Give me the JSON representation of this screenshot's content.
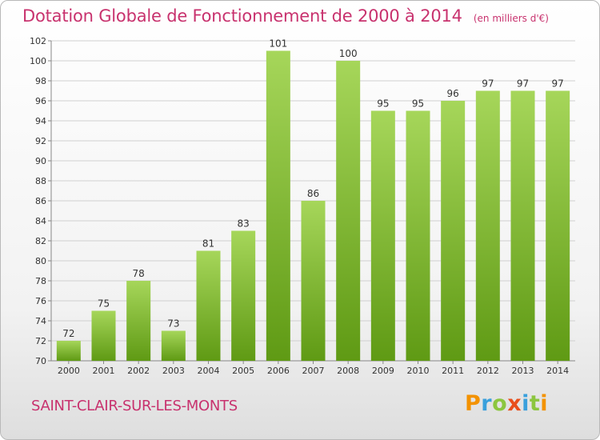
{
  "header": {
    "title": "Dotation Globale de Fonctionnement de 2000 à 2014",
    "unit": "(en milliers d'€)"
  },
  "footer": {
    "commune": "SAINT-CLAIR-SUR-LES-MONTS",
    "logo": {
      "letters": [
        "P",
        "r",
        "o",
        "x",
        "i",
        "t",
        "i"
      ],
      "colors": [
        "#f39200",
        "#3aa0dc",
        "#8cc63f",
        "#e94e1b",
        "#3aa0dc",
        "#8cc63f",
        "#f39200"
      ]
    }
  },
  "colors": {
    "accent": "#c8326e",
    "bar_light": "#a6d65a",
    "bar_dark": "#5f9a14",
    "grid": "#d0d0d0"
  },
  "chart_data": {
    "type": "bar",
    "title": "Dotation Globale de Fonctionnement de 2000 à 2014",
    "subtitle": "(en milliers d'€)",
    "categories": [
      "2000",
      "2001",
      "2002",
      "2003",
      "2004",
      "2005",
      "2006",
      "2007",
      "2008",
      "2009",
      "2010",
      "2011",
      "2012",
      "2013",
      "2014"
    ],
    "values": [
      72,
      75,
      78,
      73,
      81,
      83,
      101,
      86,
      100,
      95,
      95,
      96,
      97,
      97,
      97
    ],
    "ylim": [
      70,
      102
    ],
    "yticks": [
      70,
      72,
      74,
      76,
      78,
      80,
      82,
      84,
      86,
      88,
      90,
      92,
      94,
      96,
      98,
      100,
      102
    ],
    "grid": true
  }
}
